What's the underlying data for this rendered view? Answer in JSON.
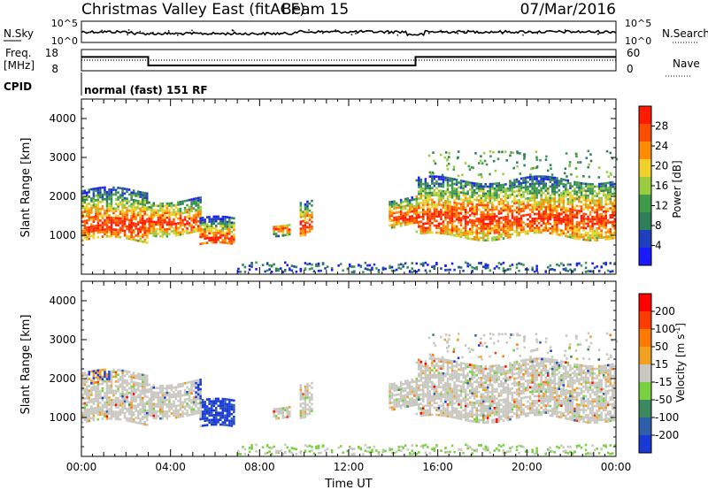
{
  "header": {
    "station": "Christmas Valley East (fitACF)",
    "beam": "Beam 15",
    "date": "07/Mar/2016"
  },
  "panels": {
    "nsky": {
      "label": "N.Sky",
      "left_ticks": [
        "10^5",
        "10^0"
      ],
      "right_ticks": [
        "10^5",
        "10^0"
      ],
      "right_label": "N.Search"
    },
    "freq": {
      "label_line1": "Freq.",
      "label_line2": "[MHz]",
      "left_ticks": [
        "18",
        "8"
      ],
      "right_ticks": [
        "60",
        "0"
      ],
      "right_label": "Nave"
    },
    "cpid": {
      "label": "CPID",
      "text": "normal (fast) 151 RF"
    }
  },
  "colors": {
    "power": [
      "#1a1aff",
      "#1f3fbf",
      "#2e7f5a",
      "#3f9a4a",
      "#9acc40",
      "#f2d02a",
      "#ff8c00",
      "#ff4d00",
      "#ff1a00"
    ],
    "velocity": [
      "#1a3ad6",
      "#2e5fa8",
      "#3a8a5e",
      "#7ad040",
      "#c8c8c0",
      "#f2a020",
      "#ff7a00",
      "#ff3c00",
      "#ff0000"
    ]
  },
  "chart_data": [
    {
      "type": "line",
      "title": "N.Sky / N.Search",
      "x": [
        "00:00",
        "04:00",
        "08:00",
        "12:00",
        "16:00",
        "20:00",
        "00:00"
      ],
      "yscale": "log",
      "left_ylim": [
        "10^0",
        "10^5"
      ],
      "right_ylim": [
        "10^0",
        "10^5"
      ],
      "series": [
        {
          "name": "N.Sky"
        },
        {
          "name": "N.Search"
        }
      ]
    },
    {
      "type": "line",
      "title": "Freq. / Nave",
      "x_hours": [
        0,
        3.0,
        3.0,
        15.0,
        15.0,
        24
      ],
      "left_ylim": [
        8,
        18
      ],
      "right_ylim": [
        0,
        60
      ],
      "series": [
        {
          "name": "Freq.",
          "values": [
            14.5,
            14.5,
            10.5,
            10.5,
            14.5,
            14.5
          ]
        },
        {
          "name": "Nave",
          "values": [
            30,
            30,
            30,
            30,
            30,
            30
          ]
        }
      ]
    },
    {
      "type": "heatmap",
      "panel": "power",
      "xlabel": "",
      "ylabel": "Slant Range [km]",
      "xlim_hours": [
        0,
        24
      ],
      "ylim": [
        0,
        4500
      ],
      "yticks": [
        "1000",
        "2000",
        "3000",
        "4000"
      ],
      "colorbar_label": "Power [dB]",
      "colorbar_ticks": [
        "4",
        "8",
        "12",
        "16",
        "20",
        "24",
        "28"
      ],
      "colorbar_range": [
        0,
        32
      ]
    },
    {
      "type": "heatmap",
      "panel": "velocity",
      "xlabel": "Time UT",
      "ylabel": "Slant Range [km]",
      "xlim_hours": [
        0,
        24
      ],
      "ylim": [
        0,
        4500
      ],
      "xticks": [
        "00:00",
        "04:00",
        "08:00",
        "12:00",
        "16:00",
        "20:00",
        "00:00"
      ],
      "yticks": [
        "1000",
        "2000",
        "3000",
        "4000"
      ],
      "colorbar_label": "Velocity [m s",
      "colorbar_label_sup": "-1",
      "colorbar_ticks": [
        "200",
        "100",
        "50",
        "15",
        "-15",
        "-50",
        "-100",
        "-200"
      ],
      "echo_regions": [
        {
          "t0": 0.0,
          "t1": 3.0,
          "r0": 900,
          "r1": 2200
        },
        {
          "t0": 3.0,
          "t1": 5.3,
          "r0": 1100,
          "r1": 2000
        },
        {
          "t0": 5.3,
          "t1": 6.8,
          "r0": 750,
          "r1": 1450
        },
        {
          "t0": 8.6,
          "t1": 9.3,
          "r0": 1100,
          "r1": 1400
        },
        {
          "t0": 9.8,
          "t1": 10.3,
          "r0": 1000,
          "r1": 1900
        },
        {
          "t0": 13.8,
          "t1": 15.0,
          "r0": 1300,
          "r1": 2000
        },
        {
          "t0": 15.0,
          "t1": 24.0,
          "r0": 1000,
          "r1": 2500
        }
      ]
    }
  ]
}
